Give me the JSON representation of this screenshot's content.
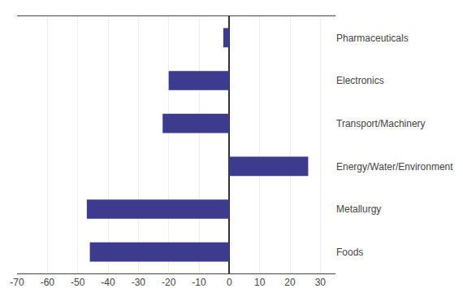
{
  "chart_data": {
    "type": "bar",
    "orientation": "horizontal",
    "categories": [
      "Pharmaceuticals",
      "Electronics",
      "Transport/Machinery",
      "Energy/Water/Environment",
      "Metallurgy",
      "Foods"
    ],
    "values": [
      -2,
      -20,
      -22,
      26,
      -47,
      -46
    ],
    "color": "#3d3b8e",
    "xlim": [
      -70,
      35
    ],
    "xticks": [
      -70,
      -60,
      -50,
      -40,
      -30,
      -20,
      -10,
      0,
      10,
      20,
      30
    ],
    "grid": true
  }
}
